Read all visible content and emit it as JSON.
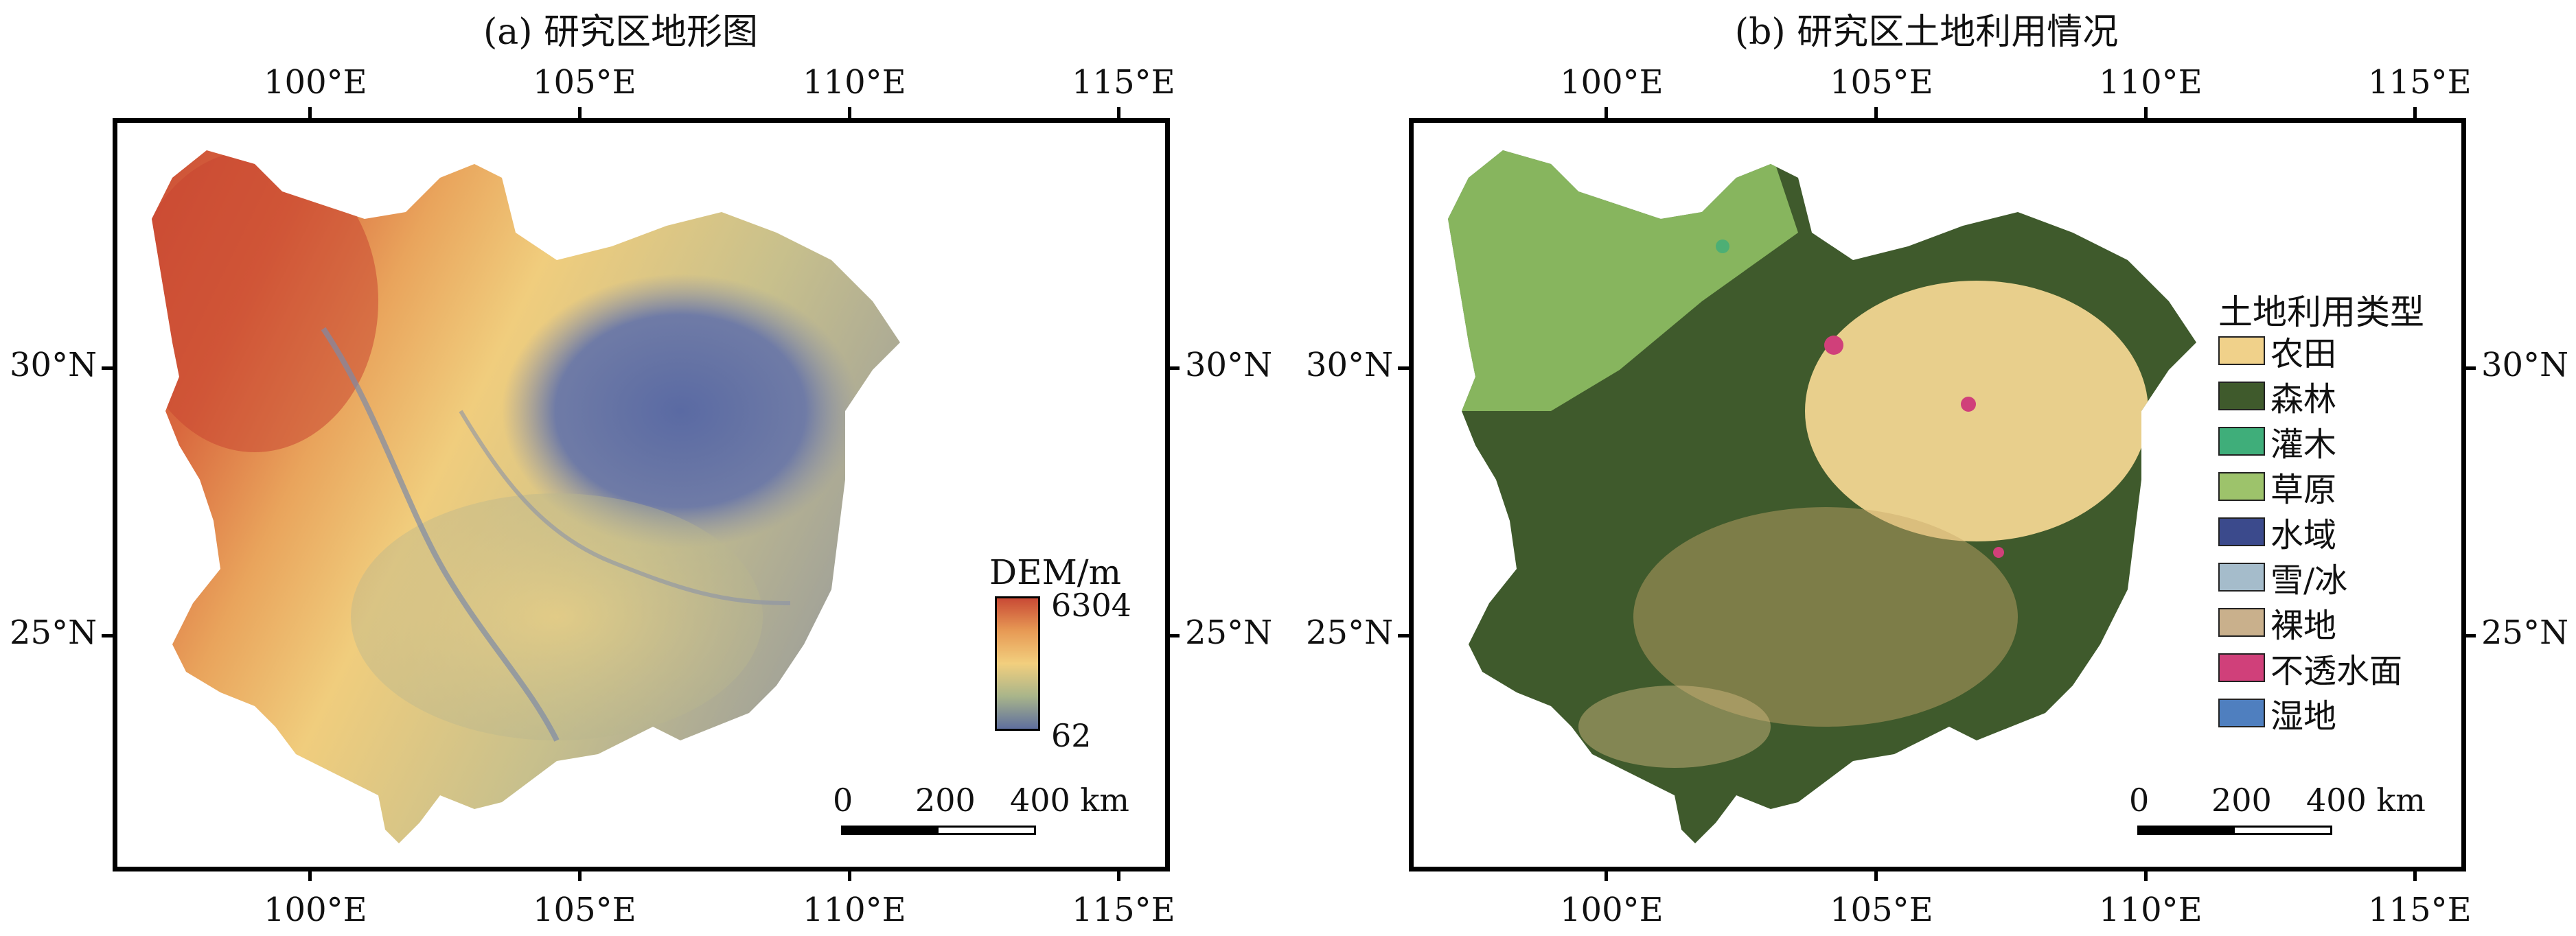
{
  "panels": [
    {
      "title": "(a) 研究区地形图",
      "x_ticks": [
        "100°E",
        "105°E",
        "110°E",
        "115°E"
      ],
      "y_ticks": [
        "30°N",
        "25°N"
      ],
      "colorbar": {
        "title": "DEM/m",
        "max_label": "6304",
        "min_label": "62",
        "colors": [
          "#c94a35",
          "#e79a55",
          "#f2cf7e",
          "#a9b58a",
          "#5f6f9e"
        ]
      },
      "scalebar": {
        "labels": [
          "0",
          "200",
          "400 km"
        ]
      }
    },
    {
      "title": "(b) 研究区土地利用情况",
      "x_ticks": [
        "100°E",
        "105°E",
        "110°E",
        "115°E"
      ],
      "y_ticks": [
        "30°N",
        "25°N"
      ],
      "legend": {
        "title": "土地利用类型",
        "items": [
          {
            "label": "农田",
            "color": "#f0d18a"
          },
          {
            "label": "森林",
            "color": "#3f5a2c"
          },
          {
            "label": "灌木",
            "color": "#3fae7a"
          },
          {
            "label": "草原",
            "color": "#9dc36b"
          },
          {
            "label": "水域",
            "color": "#3b4a8c"
          },
          {
            "label": "雪/冰",
            "color": "#a5bccb"
          },
          {
            "label": "裸地",
            "color": "#c9b08c"
          },
          {
            "label": "不透水面",
            "color": "#d0407a"
          },
          {
            "label": "湿地",
            "color": "#4f7fbf"
          }
        ]
      },
      "scalebar": {
        "labels": [
          "0",
          "200",
          "400 km"
        ]
      }
    }
  ]
}
